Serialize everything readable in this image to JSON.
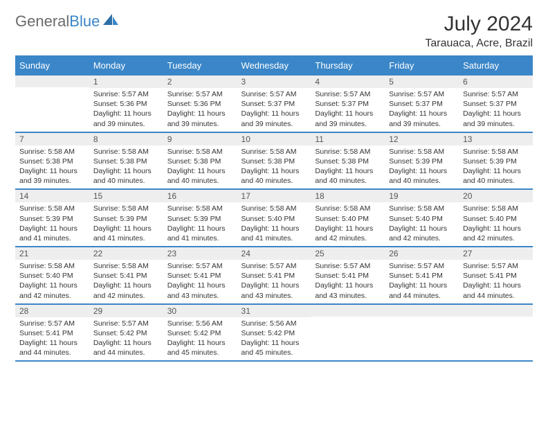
{
  "logo": {
    "part1": "General",
    "part2": "Blue"
  },
  "title": "July 2024",
  "location": "Tarauaca, Acre, Brazil",
  "colors": {
    "accent": "#3a86c8",
    "header_bg": "#3a86c8",
    "daynum_bg": "#eeeeee",
    "text": "#333333"
  },
  "dayHeaders": [
    "Sunday",
    "Monday",
    "Tuesday",
    "Wednesday",
    "Thursday",
    "Friday",
    "Saturday"
  ],
  "weeks": [
    [
      {
        "num": "",
        "sunrise": "",
        "sunset": "",
        "daylight": ""
      },
      {
        "num": "1",
        "sunrise": "Sunrise: 5:57 AM",
        "sunset": "Sunset: 5:36 PM",
        "daylight": "Daylight: 11 hours and 39 minutes."
      },
      {
        "num": "2",
        "sunrise": "Sunrise: 5:57 AM",
        "sunset": "Sunset: 5:36 PM",
        "daylight": "Daylight: 11 hours and 39 minutes."
      },
      {
        "num": "3",
        "sunrise": "Sunrise: 5:57 AM",
        "sunset": "Sunset: 5:37 PM",
        "daylight": "Daylight: 11 hours and 39 minutes."
      },
      {
        "num": "4",
        "sunrise": "Sunrise: 5:57 AM",
        "sunset": "Sunset: 5:37 PM",
        "daylight": "Daylight: 11 hours and 39 minutes."
      },
      {
        "num": "5",
        "sunrise": "Sunrise: 5:57 AM",
        "sunset": "Sunset: 5:37 PM",
        "daylight": "Daylight: 11 hours and 39 minutes."
      },
      {
        "num": "6",
        "sunrise": "Sunrise: 5:57 AM",
        "sunset": "Sunset: 5:37 PM",
        "daylight": "Daylight: 11 hours and 39 minutes."
      }
    ],
    [
      {
        "num": "7",
        "sunrise": "Sunrise: 5:58 AM",
        "sunset": "Sunset: 5:38 PM",
        "daylight": "Daylight: 11 hours and 39 minutes."
      },
      {
        "num": "8",
        "sunrise": "Sunrise: 5:58 AM",
        "sunset": "Sunset: 5:38 PM",
        "daylight": "Daylight: 11 hours and 40 minutes."
      },
      {
        "num": "9",
        "sunrise": "Sunrise: 5:58 AM",
        "sunset": "Sunset: 5:38 PM",
        "daylight": "Daylight: 11 hours and 40 minutes."
      },
      {
        "num": "10",
        "sunrise": "Sunrise: 5:58 AM",
        "sunset": "Sunset: 5:38 PM",
        "daylight": "Daylight: 11 hours and 40 minutes."
      },
      {
        "num": "11",
        "sunrise": "Sunrise: 5:58 AM",
        "sunset": "Sunset: 5:38 PM",
        "daylight": "Daylight: 11 hours and 40 minutes."
      },
      {
        "num": "12",
        "sunrise": "Sunrise: 5:58 AM",
        "sunset": "Sunset: 5:39 PM",
        "daylight": "Daylight: 11 hours and 40 minutes."
      },
      {
        "num": "13",
        "sunrise": "Sunrise: 5:58 AM",
        "sunset": "Sunset: 5:39 PM",
        "daylight": "Daylight: 11 hours and 40 minutes."
      }
    ],
    [
      {
        "num": "14",
        "sunrise": "Sunrise: 5:58 AM",
        "sunset": "Sunset: 5:39 PM",
        "daylight": "Daylight: 11 hours and 41 minutes."
      },
      {
        "num": "15",
        "sunrise": "Sunrise: 5:58 AM",
        "sunset": "Sunset: 5:39 PM",
        "daylight": "Daylight: 11 hours and 41 minutes."
      },
      {
        "num": "16",
        "sunrise": "Sunrise: 5:58 AM",
        "sunset": "Sunset: 5:39 PM",
        "daylight": "Daylight: 11 hours and 41 minutes."
      },
      {
        "num": "17",
        "sunrise": "Sunrise: 5:58 AM",
        "sunset": "Sunset: 5:40 PM",
        "daylight": "Daylight: 11 hours and 41 minutes."
      },
      {
        "num": "18",
        "sunrise": "Sunrise: 5:58 AM",
        "sunset": "Sunset: 5:40 PM",
        "daylight": "Daylight: 11 hours and 42 minutes."
      },
      {
        "num": "19",
        "sunrise": "Sunrise: 5:58 AM",
        "sunset": "Sunset: 5:40 PM",
        "daylight": "Daylight: 11 hours and 42 minutes."
      },
      {
        "num": "20",
        "sunrise": "Sunrise: 5:58 AM",
        "sunset": "Sunset: 5:40 PM",
        "daylight": "Daylight: 11 hours and 42 minutes."
      }
    ],
    [
      {
        "num": "21",
        "sunrise": "Sunrise: 5:58 AM",
        "sunset": "Sunset: 5:40 PM",
        "daylight": "Daylight: 11 hours and 42 minutes."
      },
      {
        "num": "22",
        "sunrise": "Sunrise: 5:58 AM",
        "sunset": "Sunset: 5:41 PM",
        "daylight": "Daylight: 11 hours and 42 minutes."
      },
      {
        "num": "23",
        "sunrise": "Sunrise: 5:57 AM",
        "sunset": "Sunset: 5:41 PM",
        "daylight": "Daylight: 11 hours and 43 minutes."
      },
      {
        "num": "24",
        "sunrise": "Sunrise: 5:57 AM",
        "sunset": "Sunset: 5:41 PM",
        "daylight": "Daylight: 11 hours and 43 minutes."
      },
      {
        "num": "25",
        "sunrise": "Sunrise: 5:57 AM",
        "sunset": "Sunset: 5:41 PM",
        "daylight": "Daylight: 11 hours and 43 minutes."
      },
      {
        "num": "26",
        "sunrise": "Sunrise: 5:57 AM",
        "sunset": "Sunset: 5:41 PM",
        "daylight": "Daylight: 11 hours and 44 minutes."
      },
      {
        "num": "27",
        "sunrise": "Sunrise: 5:57 AM",
        "sunset": "Sunset: 5:41 PM",
        "daylight": "Daylight: 11 hours and 44 minutes."
      }
    ],
    [
      {
        "num": "28",
        "sunrise": "Sunrise: 5:57 AM",
        "sunset": "Sunset: 5:41 PM",
        "daylight": "Daylight: 11 hours and 44 minutes."
      },
      {
        "num": "29",
        "sunrise": "Sunrise: 5:57 AM",
        "sunset": "Sunset: 5:42 PM",
        "daylight": "Daylight: 11 hours and 44 minutes."
      },
      {
        "num": "30",
        "sunrise": "Sunrise: 5:56 AM",
        "sunset": "Sunset: 5:42 PM",
        "daylight": "Daylight: 11 hours and 45 minutes."
      },
      {
        "num": "31",
        "sunrise": "Sunrise: 5:56 AM",
        "sunset": "Sunset: 5:42 PM",
        "daylight": "Daylight: 11 hours and 45 minutes."
      },
      {
        "num": "",
        "sunrise": "",
        "sunset": "",
        "daylight": ""
      },
      {
        "num": "",
        "sunrise": "",
        "sunset": "",
        "daylight": ""
      },
      {
        "num": "",
        "sunrise": "",
        "sunset": "",
        "daylight": ""
      }
    ]
  ]
}
